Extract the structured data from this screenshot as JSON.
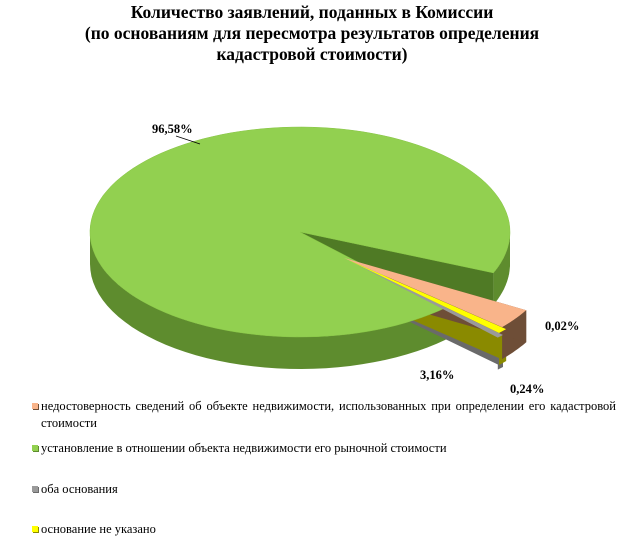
{
  "chart_data": {
    "type": "pie",
    "title_lines": [
      "Количество заявлений, поданных в Комиссии",
      "(по основаниям для пересмотра результатов определения",
      "кадастровой стоимости)"
    ],
    "categories": [
      "недостоверность сведений об объекте недвижимости, использованных при определении его кадастровой стоимости",
      "установление в отношении объекта недвижимости его рыночной стоимости",
      "оба основания",
      "основание не указано"
    ],
    "values": [
      3.16,
      96.58,
      0.02,
      0.24
    ],
    "data_labels": [
      "3,16%",
      "96,58%",
      "0,02%",
      "0,24%"
    ],
    "colors": [
      "#F9B48A",
      "#92D050",
      "#9A9A9A",
      "#FFFF00"
    ],
    "side_colors": [
      "#6E4E37",
      "#5E8C2E",
      "#6A6A6A",
      "#8A8A00"
    ],
    "legend_position": "bottom",
    "three_d": true,
    "exploded": true
  }
}
